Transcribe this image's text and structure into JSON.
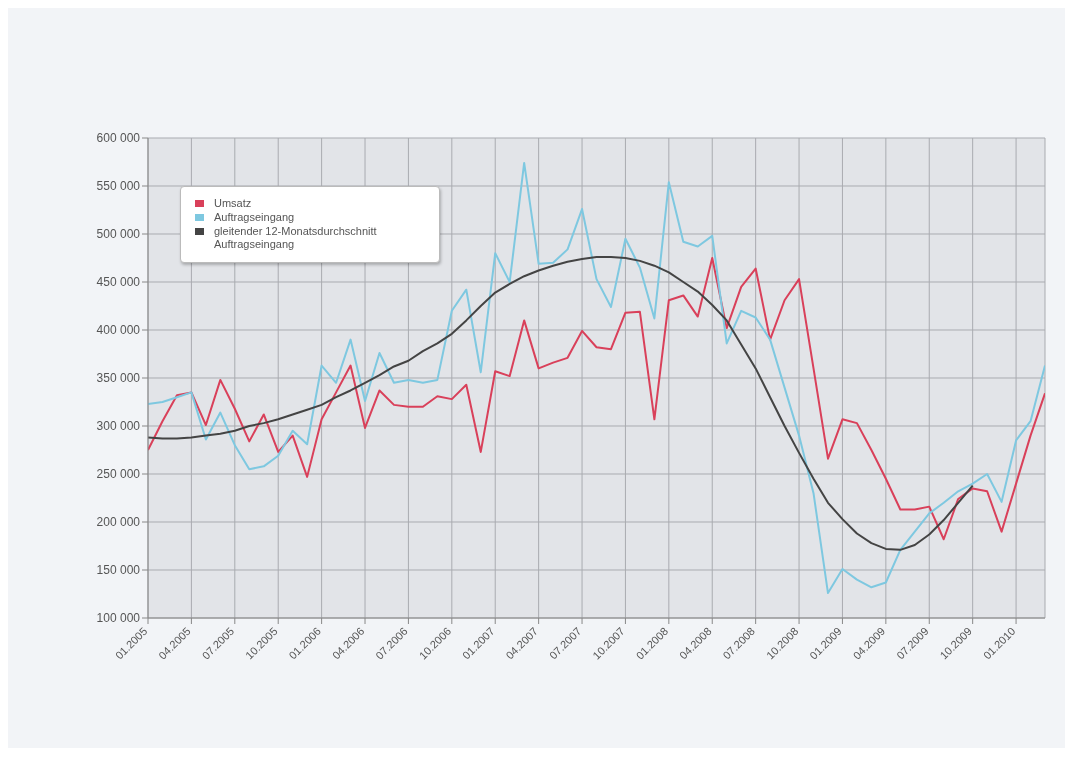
{
  "chart_data": {
    "type": "line",
    "categories": [
      "01.2005",
      null,
      null,
      "04.2005",
      null,
      null,
      "07.2005",
      null,
      null,
      "10.2005",
      null,
      null,
      "01.2006",
      null,
      null,
      "04.2006",
      null,
      null,
      "07.2006",
      null,
      null,
      "10.2006",
      null,
      null,
      "01.2007",
      null,
      null,
      "04.2007",
      null,
      null,
      "07.2007",
      null,
      null,
      "10.2007",
      null,
      null,
      "01.2008",
      null,
      null,
      "04.2008",
      null,
      null,
      "07.2008",
      null,
      null,
      "10.2008",
      null,
      null,
      "01.2009",
      null,
      null,
      "04.2009",
      null,
      null,
      "07.2009",
      null,
      null,
      "10.2009",
      null,
      null,
      "01.2010",
      null,
      null
    ],
    "series": [
      {
        "name": "Umsatz",
        "color": "#d9405a",
        "values": [
          275000,
          305000,
          332000,
          335000,
          301000,
          348000,
          318000,
          284000,
          312000,
          273000,
          290000,
          247000,
          307000,
          335000,
          363000,
          298000,
          337000,
          322000,
          320000,
          320000,
          331000,
          328000,
          343000,
          273000,
          357000,
          352000,
          410000,
          360000,
          366000,
          371000,
          399000,
          382000,
          380000,
          418000,
          419000,
          307000,
          431000,
          436000,
          414000,
          475000,
          402000,
          445000,
          464000,
          390000,
          431000,
          453000,
          360000,
          266000,
          307000,
          303000,
          275000,
          245000,
          213000,
          213000,
          216000,
          182000,
          224000,
          235000,
          232000,
          190000,
          240000,
          290000,
          334000
        ]
      },
      {
        "name": "Auftragseingang",
        "color": "#7ec8e0",
        "values": [
          323000,
          325000,
          330000,
          335000,
          286000,
          314000,
          280000,
          255000,
          258000,
          269000,
          295000,
          281000,
          363000,
          345000,
          390000,
          326000,
          376000,
          345000,
          348000,
          345000,
          348000,
          420000,
          442000,
          356000,
          480000,
          450000,
          574000,
          469000,
          470000,
          484000,
          526000,
          453000,
          424000,
          495000,
          465000,
          412000,
          554000,
          492000,
          487000,
          498000,
          386000,
          420000,
          413000,
          390000,
          340000,
          290000,
          230000,
          126000,
          151000,
          140000,
          132000,
          137000,
          171000,
          190000,
          209000,
          220000,
          232000,
          240000,
          250000,
          221000,
          285000,
          305000,
          363000
        ]
      },
      {
        "name": "gleitender 12-Monatsdurchschnitt Auftragseingang",
        "color": "#444444",
        "values": [
          288000,
          287000,
          287000,
          288000,
          290000,
          292000,
          295000,
          300000,
          303000,
          307000,
          312000,
          317000,
          322000,
          330000,
          337000,
          345000,
          353000,
          362000,
          368000,
          378000,
          386000,
          396000,
          410000,
          425000,
          439000,
          448000,
          456000,
          462000,
          467000,
          471000,
          474000,
          476000,
          476000,
          475000,
          472000,
          467000,
          460000,
          450000,
          440000,
          426000,
          410000,
          385000,
          360000,
          330000,
          300000,
          272000,
          245000,
          220000,
          203000,
          188000,
          178000,
          172000,
          171000,
          176000,
          187000,
          202000,
          220000,
          238000,
          null,
          null,
          null,
          null,
          null
        ]
      }
    ],
    "ylim": [
      100000,
      600000
    ],
    "yticks": [
      {
        "value": 100000,
        "label": "100 000"
      },
      {
        "value": 150000,
        "label": "150 000"
      },
      {
        "value": 200000,
        "label": "200 000"
      },
      {
        "value": 250000,
        "label": "250 000"
      },
      {
        "value": 300000,
        "label": "300 000"
      },
      {
        "value": 350000,
        "label": "350 000"
      },
      {
        "value": 400000,
        "label": "400 000"
      },
      {
        "value": 450000,
        "label": "450 000"
      },
      {
        "value": 500000,
        "label": "500 000"
      },
      {
        "value": 550000,
        "label": "550 000"
      },
      {
        "value": 600000,
        "label": "600 000"
      }
    ],
    "grid": true,
    "legend": "top left",
    "marker": "none",
    "line_style": "solid"
  }
}
